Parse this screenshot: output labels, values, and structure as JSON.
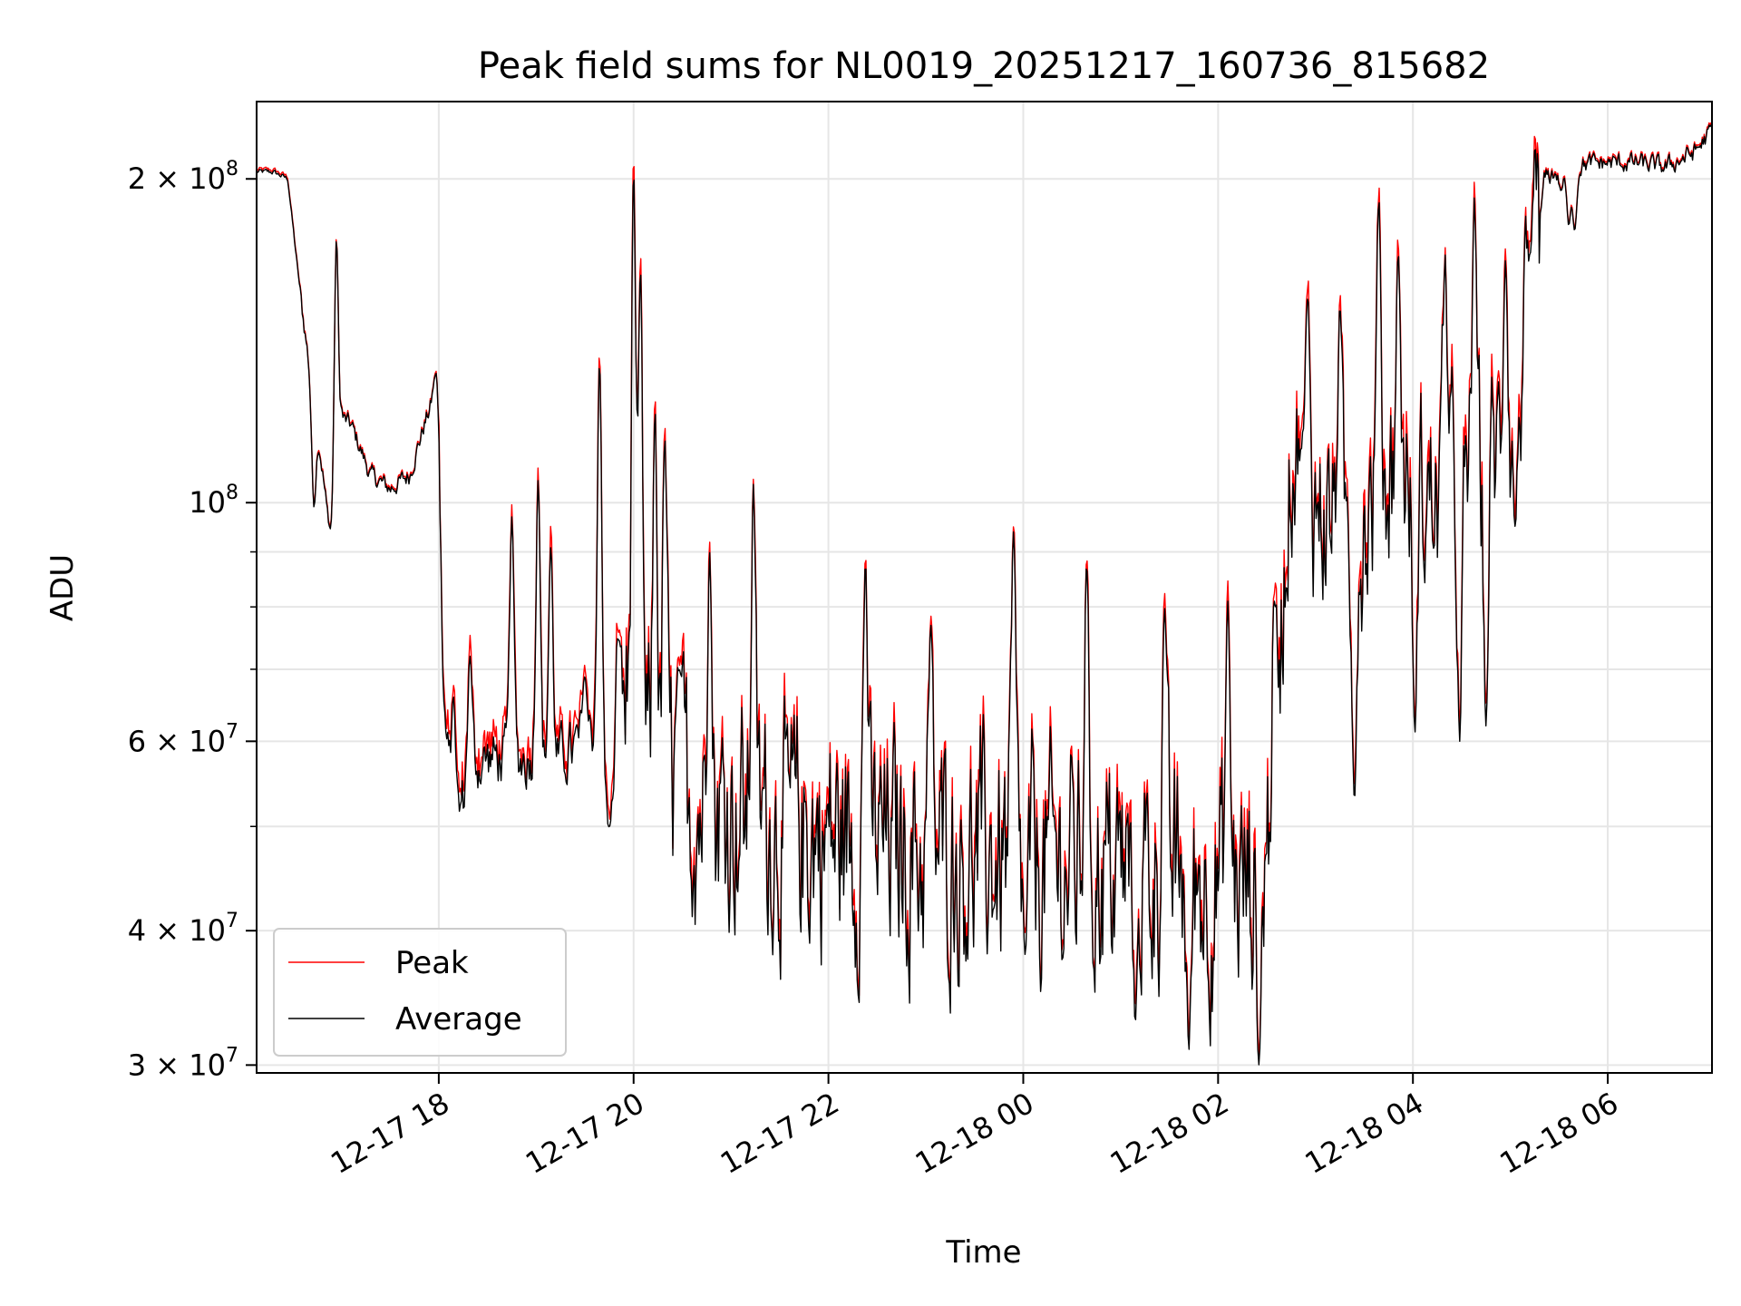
{
  "chart_data": {
    "type": "line",
    "title": "Peak field sums for NL0019_20251217_160736_815682",
    "xlabel": "Time",
    "ylabel": "ADU",
    "yscale": "log",
    "ylim": [
      29500000,
      236000000
    ],
    "xlim_hours": [
      16.13,
      31.07
    ],
    "grid": true,
    "legend_position": "lower-left",
    "x_ticks": [
      {
        "hour": 18,
        "label": "12-17 18"
      },
      {
        "hour": 20,
        "label": "12-17 20"
      },
      {
        "hour": 22,
        "label": "12-17 22"
      },
      {
        "hour": 24,
        "label": "12-18 00"
      },
      {
        "hour": 26,
        "label": "12-18 02"
      },
      {
        "hour": 28,
        "label": "12-18 04"
      },
      {
        "hour": 30,
        "label": "12-18 06"
      }
    ],
    "y_major_ticks": [
      {
        "value": 30000000,
        "mantissa": "3",
        "exponent": "7"
      },
      {
        "value": 40000000,
        "mantissa": "4",
        "exponent": "7"
      },
      {
        "value": 60000000,
        "mantissa": "6",
        "exponent": "7"
      },
      {
        "value": 100000000,
        "mantissa": "",
        "exponent": "8"
      },
      {
        "value": 200000000,
        "mantissa": "2",
        "exponent": "8"
      }
    ],
    "y_minor_ticks": [
      50000000,
      70000000,
      80000000,
      90000000
    ],
    "series": [
      {
        "name": "Peak",
        "color": "#ff0000"
      },
      {
        "name": "Average",
        "color": "#000000"
      }
    ],
    "avg_profile": [
      [
        16.13,
        203000000
      ],
      [
        16.3,
        203000000
      ],
      [
        16.45,
        200000000
      ],
      [
        16.6,
        150000000
      ],
      [
        16.72,
        125000000
      ],
      [
        16.85,
        99000000
      ],
      [
        16.95,
        94000000
      ],
      [
        17.0,
        120000000
      ],
      [
        17.1,
        118000000
      ],
      [
        17.3,
        106000000
      ],
      [
        17.5,
        103000000
      ],
      [
        17.7,
        106000000
      ],
      [
        17.85,
        118000000
      ],
      [
        17.95,
        125000000
      ],
      [
        18.0,
        105000000
      ],
      [
        18.05,
        65000000
      ],
      [
        18.12,
        54000000
      ],
      [
        18.2,
        51000000
      ],
      [
        18.35,
        57000000
      ],
      [
        18.55,
        58000000
      ],
      [
        18.75,
        57500000
      ],
      [
        18.95,
        58000000
      ],
      [
        19.15,
        57000000
      ],
      [
        19.4,
        59000000
      ],
      [
        19.65,
        62000000
      ],
      [
        19.75,
        51000000
      ],
      [
        19.9,
        66000000
      ],
      [
        20.1,
        58000000
      ],
      [
        20.6,
        53000000
      ],
      [
        21.2,
        51000000
      ],
      [
        21.8,
        49000000
      ],
      [
        22.4,
        48000000
      ],
      [
        23.0,
        47000000
      ],
      [
        23.6,
        46500000
      ],
      [
        24.2,
        46000000
      ],
      [
        24.8,
        45500000
      ],
      [
        25.4,
        45000000
      ],
      [
        25.9,
        44500000
      ],
      [
        26.3,
        44000000
      ],
      [
        26.5,
        47000000
      ],
      [
        26.62,
        70000000
      ],
      [
        26.75,
        115000000
      ],
      [
        27.0,
        100000000
      ],
      [
        27.4,
        92000000
      ],
      [
        27.8,
        108000000
      ],
      [
        28.2,
        100000000
      ],
      [
        28.6,
        105000000
      ],
      [
        29.0,
        115000000
      ],
      [
        29.2,
        150000000
      ],
      [
        29.35,
        200000000
      ],
      [
        29.6,
        206000000
      ],
      [
        30.0,
        207000000
      ],
      [
        30.3,
        207000000
      ],
      [
        30.6,
        205000000
      ],
      [
        30.9,
        212000000
      ],
      [
        31.07,
        222000000
      ]
    ],
    "spikes": [
      [
        16.72,
        99000000
      ],
      [
        16.9,
        93000000
      ],
      [
        16.95,
        176000000
      ],
      [
        17.97,
        132000000
      ],
      [
        18.15,
        66000000
      ],
      [
        18.32,
        72000000
      ],
      [
        18.75,
        97000000
      ],
      [
        19.02,
        105000000
      ],
      [
        19.15,
        91000000
      ],
      [
        19.5,
        69000000
      ],
      [
        19.65,
        135000000
      ],
      [
        19.75,
        50000000
      ],
      [
        19.85,
        75000000
      ],
      [
        20.0,
        205000000
      ],
      [
        20.07,
        165000000
      ],
      [
        20.22,
        122000000
      ],
      [
        20.32,
        115000000
      ],
      [
        20.47,
        70000000
      ],
      [
        20.78,
        90000000
      ],
      [
        21.23,
        104000000
      ],
      [
        22.38,
        88000000
      ],
      [
        23.05,
        77000000
      ],
      [
        23.9,
        94000000
      ],
      [
        24.02,
        38000000
      ],
      [
        24.65,
        88000000
      ],
      [
        25.15,
        33000000
      ],
      [
        25.45,
        80000000
      ],
      [
        25.7,
        31000000
      ],
      [
        26.1,
        81000000
      ],
      [
        26.42,
        30000000
      ],
      [
        26.58,
        81000000
      ],
      [
        26.85,
        112000000
      ],
      [
        26.92,
        155000000
      ],
      [
        27.25,
        152000000
      ],
      [
        27.4,
        53000000
      ],
      [
        27.65,
        192000000
      ],
      [
        27.85,
        170000000
      ],
      [
        28.02,
        61000000
      ],
      [
        28.33,
        170000000
      ],
      [
        28.48,
        60000000
      ],
      [
        28.63,
        192000000
      ],
      [
        28.75,
        62000000
      ],
      [
        28.95,
        168000000
      ],
      [
        29.05,
        95000000
      ],
      [
        29.2,
        170000000
      ],
      [
        29.52,
        195000000
      ],
      [
        29.6,
        181000000
      ],
      [
        29.66,
        179000000
      ]
    ]
  }
}
